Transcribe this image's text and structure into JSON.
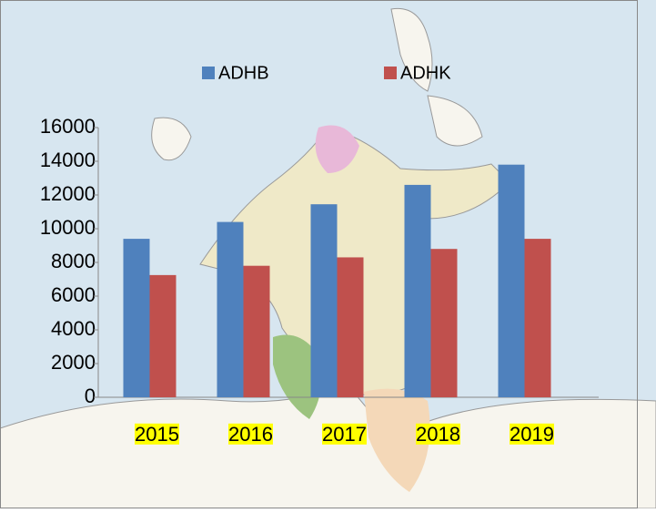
{
  "chart_data": {
    "type": "bar",
    "categories": [
      "2015",
      "2016",
      "2017",
      "2018",
      "2019"
    ],
    "series": [
      {
        "name": "ADHB",
        "color": "#4f81bd",
        "values": [
          9400,
          10400,
          11450,
          12600,
          13800
        ]
      },
      {
        "name": "ADHK",
        "color": "#c0504d",
        "values": [
          7250,
          7800,
          8300,
          8800,
          9400
        ]
      }
    ],
    "ylim": [
      0,
      16000
    ],
    "yticks": [
      0,
      2000,
      4000,
      6000,
      8000,
      10000,
      12000,
      14000,
      16000
    ],
    "grid": false,
    "legend": "top",
    "category_label_highlight": "#ffff00"
  }
}
